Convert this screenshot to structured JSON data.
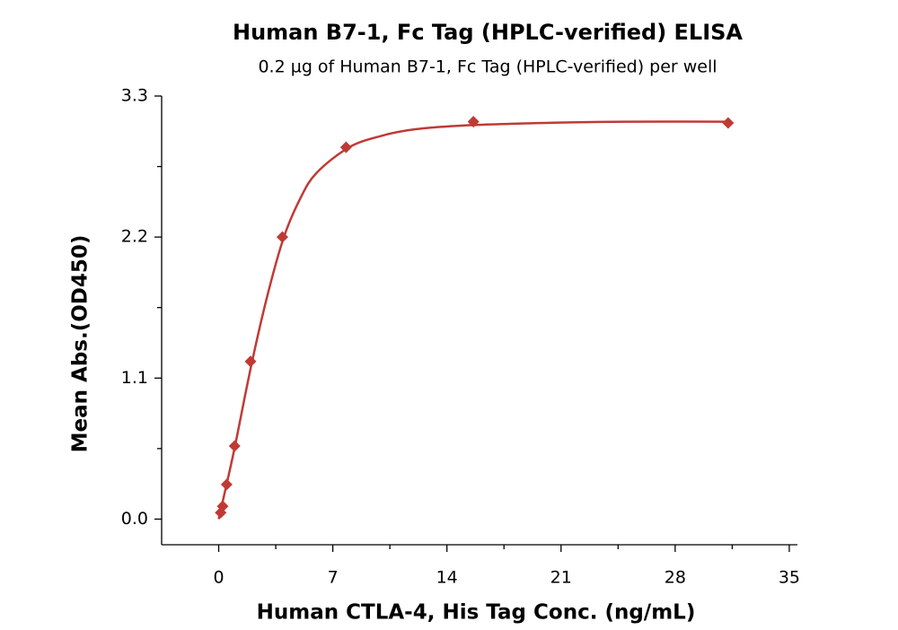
{
  "chart_data": {
    "type": "scatter",
    "title": "Human B7-1, Fc Tag (HPLC-verified) ELISA",
    "subtitle": "0.2 µg of Human B7-1, Fc Tag (HPLC-verified) per well",
    "x_label": "Human CTLA-4, His Tag Conc. (ng/mL)",
    "y_label": "Mean Abs.(OD450)",
    "xlim": [
      -3.5,
      35.5
    ],
    "ylim": [
      -0.2,
      3.3
    ],
    "xticks": [
      0,
      7,
      14,
      21,
      28,
      35
    ],
    "yticks": [
      {
        "value": 0,
        "label": "0.0"
      },
      1.1,
      2.2,
      3.3
    ],
    "xminorticks": [
      3.5,
      10.5,
      17.5,
      24.5,
      31.5
    ],
    "yminorticks": [
      0.55,
      1.65,
      2.75
    ],
    "series": [
      {
        "name": "Data",
        "color": "#c03a35",
        "x": [
          0.122,
          0.244,
          0.488,
          0.977,
          1.953,
          3.906,
          7.8125,
          15.625,
          31.25
        ],
        "values": [
          0.05,
          0.1,
          0.27,
          0.57,
          1.23,
          2.2,
          2.9,
          3.1,
          3.09
        ]
      },
      {
        "name": "Fit",
        "color": "#c03a35",
        "x": [
          0,
          0.5,
          1,
          2,
          3,
          4,
          5,
          6,
          8,
          10,
          12,
          15,
          20,
          25,
          31.25
        ],
        "values": [
          0.0,
          0.28,
          0.57,
          1.2,
          1.75,
          2.2,
          2.5,
          2.7,
          2.9,
          2.99,
          3.04,
          3.07,
          3.09,
          3.1,
          3.1
        ]
      }
    ]
  }
}
